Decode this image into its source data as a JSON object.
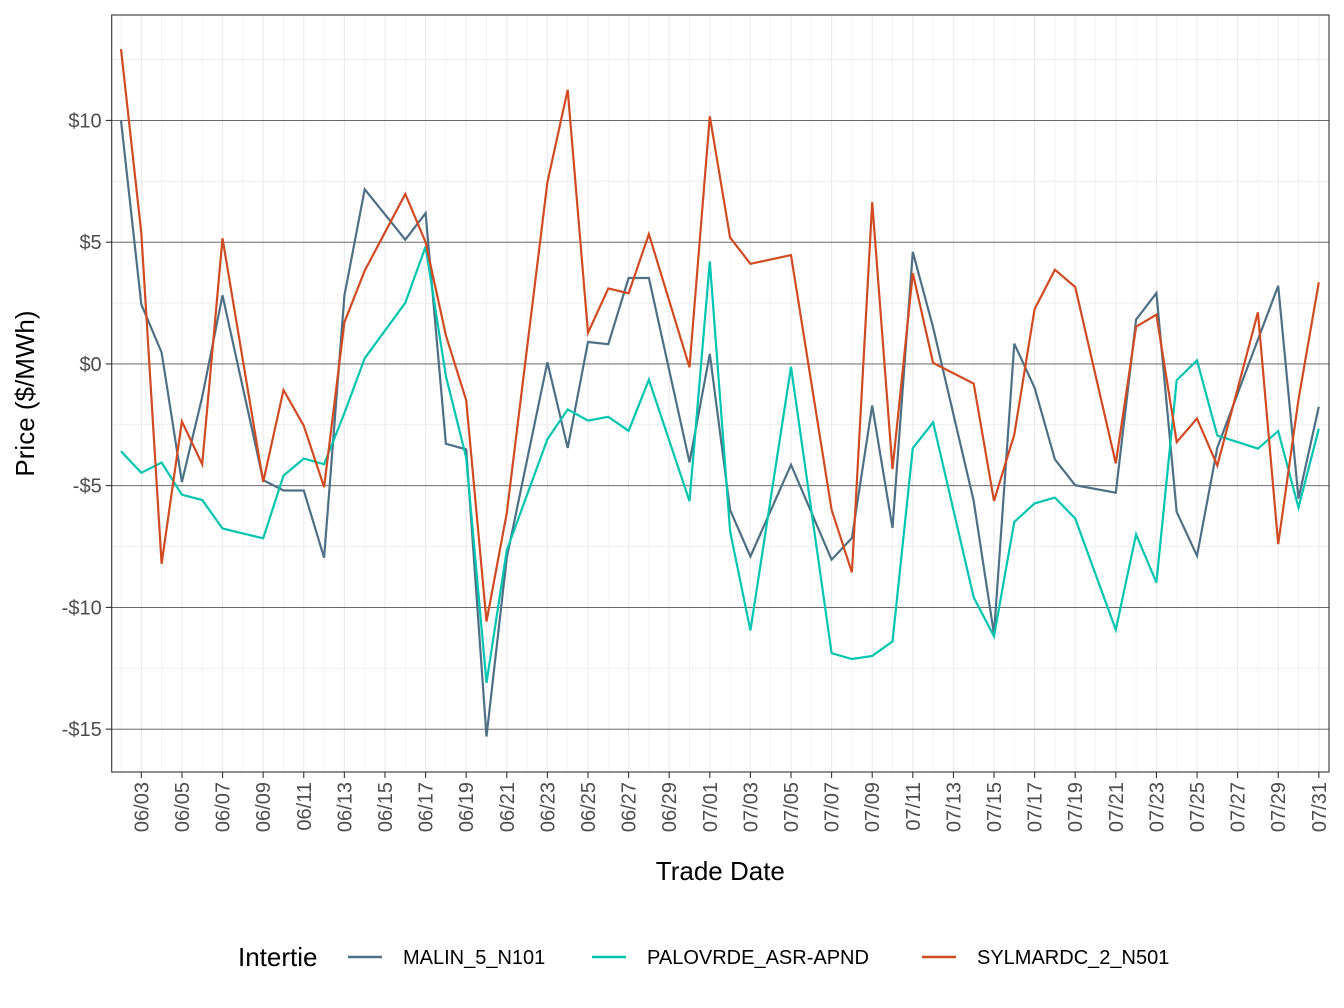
{
  "chart_data": {
    "type": "line",
    "title": "",
    "xlabel": "Trade Date",
    "ylabel": "Price ($/MWh)",
    "x_start": "06/02",
    "x_dates": [
      "06/02",
      "06/03",
      "06/04",
      "06/05",
      "06/06",
      "06/07",
      "06/08",
      "06/09",
      "06/10",
      "06/11",
      "06/12",
      "06/13",
      "06/14",
      "06/15",
      "06/16",
      "06/17",
      "06/18",
      "06/19",
      "06/20",
      "06/21",
      "06/22",
      "06/23",
      "06/24",
      "06/25",
      "06/26",
      "06/27",
      "06/28",
      "06/29",
      "06/30",
      "07/01",
      "07/02",
      "07/03",
      "07/04",
      "07/05",
      "07/06",
      "07/07",
      "07/08",
      "07/09",
      "07/10",
      "07/11",
      "07/12",
      "07/13",
      "07/14",
      "07/15",
      "07/16",
      "07/17",
      "07/18",
      "07/19",
      "07/20",
      "07/21",
      "07/22",
      "07/23",
      "07/24",
      "07/25",
      "07/26",
      "07/27",
      "07/28",
      "07/29",
      "07/30",
      "07/31"
    ],
    "x_tick_labels": [
      "06/03",
      "06/05",
      "06/07",
      "06/09",
      "06/11",
      "06/13",
      "06/15",
      "06/17",
      "06/19",
      "06/21",
      "06/23",
      "06/25",
      "06/27",
      "06/29",
      "07/01",
      "07/03",
      "07/05",
      "07/07",
      "07/09",
      "07/11",
      "07/13",
      "07/15",
      "07/17",
      "07/19",
      "07/21",
      "07/23",
      "07/25",
      "07/27",
      "07/29",
      "07/31"
    ],
    "xlim_days": [
      -0.46,
      59.5
    ],
    "y_ticks": [
      10,
      5,
      0,
      -5,
      -10,
      -15
    ],
    "y_tick_labels": [
      "$10",
      "$5",
      "$0",
      "-$5",
      "-$10",
      "-$15"
    ],
    "ylim": [
      -16.76,
      14.33
    ],
    "grid": true,
    "legend": {
      "title": "Intertie",
      "placement": "bottom"
    },
    "series": [
      {
        "name": "MALIN_5_N101",
        "color": "#4e7084",
        "values": [
          10.0,
          2.45,
          0.47,
          -4.85,
          -1.36,
          2.82,
          null,
          -4.77,
          -5.2,
          -5.2,
          -7.96,
          2.8,
          7.17,
          null,
          5.1,
          6.19,
          -3.28,
          -3.51,
          -15.3,
          -7.95,
          null,
          0.07,
          -3.45,
          0.9,
          0.81,
          3.53,
          3.53,
          null,
          -4.04,
          0.41,
          -6.0,
          -7.91,
          null,
          -4.14,
          null,
          -8.04,
          -7.15,
          -1.71,
          -6.74,
          4.6,
          1.5,
          null,
          -5.63,
          -11.1,
          0.83,
          -0.98,
          -3.92,
          -4.98,
          null,
          -5.29,
          1.82,
          2.91,
          -6.08,
          -7.88,
          -3.44,
          null,
          1.0,
          3.21,
          -5.53,
          -1.76
        ]
      },
      {
        "name": "PALOVRDE_ASR-APND",
        "color": "#00c5b0",
        "values": [
          -3.59,
          -4.47,
          -4.05,
          -5.37,
          -5.59,
          -6.76,
          null,
          -7.16,
          -4.59,
          -3.89,
          -4.12,
          -2.02,
          0.23,
          null,
          2.51,
          4.82,
          -0.5,
          -3.85,
          -13.1,
          -7.65,
          null,
          -3.09,
          -1.87,
          -2.33,
          -2.17,
          -2.75,
          -0.65,
          null,
          -5.64,
          4.21,
          -6.87,
          -10.95,
          null,
          -0.12,
          null,
          -11.88,
          -12.12,
          -11.99,
          -11.4,
          -3.46,
          -2.4,
          null,
          -9.59,
          -11.19,
          -6.49,
          -5.73,
          -5.49,
          -6.35,
          null,
          -10.92,
          -7.0,
          -8.98,
          -0.67,
          0.15,
          -2.94,
          null,
          -3.48,
          -2.76,
          -5.9,
          -2.66
        ]
      },
      {
        "name": "SYLMARDC_2_N501",
        "color": "#d04a22",
        "values": [
          12.93,
          5.38,
          -8.21,
          -2.36,
          -4.12,
          5.16,
          null,
          -4.85,
          -1.07,
          -2.54,
          -5.06,
          1.71,
          3.83,
          null,
          6.98,
          5.0,
          1.17,
          -1.49,
          -10.58,
          -6.12,
          null,
          7.46,
          11.26,
          1.28,
          3.1,
          2.9,
          5.33,
          null,
          -0.14,
          10.17,
          5.19,
          4.11,
          null,
          4.47,
          null,
          -5.99,
          -8.56,
          6.64,
          -4.32,
          3.73,
          0.04,
          null,
          -0.81,
          -5.63,
          -2.9,
          2.25,
          3.87,
          3.16,
          null,
          -4.08,
          1.53,
          2.02,
          -3.21,
          -2.24,
          -4.17,
          null,
          2.12,
          -7.4,
          -1.46,
          3.35
        ]
      }
    ]
  }
}
